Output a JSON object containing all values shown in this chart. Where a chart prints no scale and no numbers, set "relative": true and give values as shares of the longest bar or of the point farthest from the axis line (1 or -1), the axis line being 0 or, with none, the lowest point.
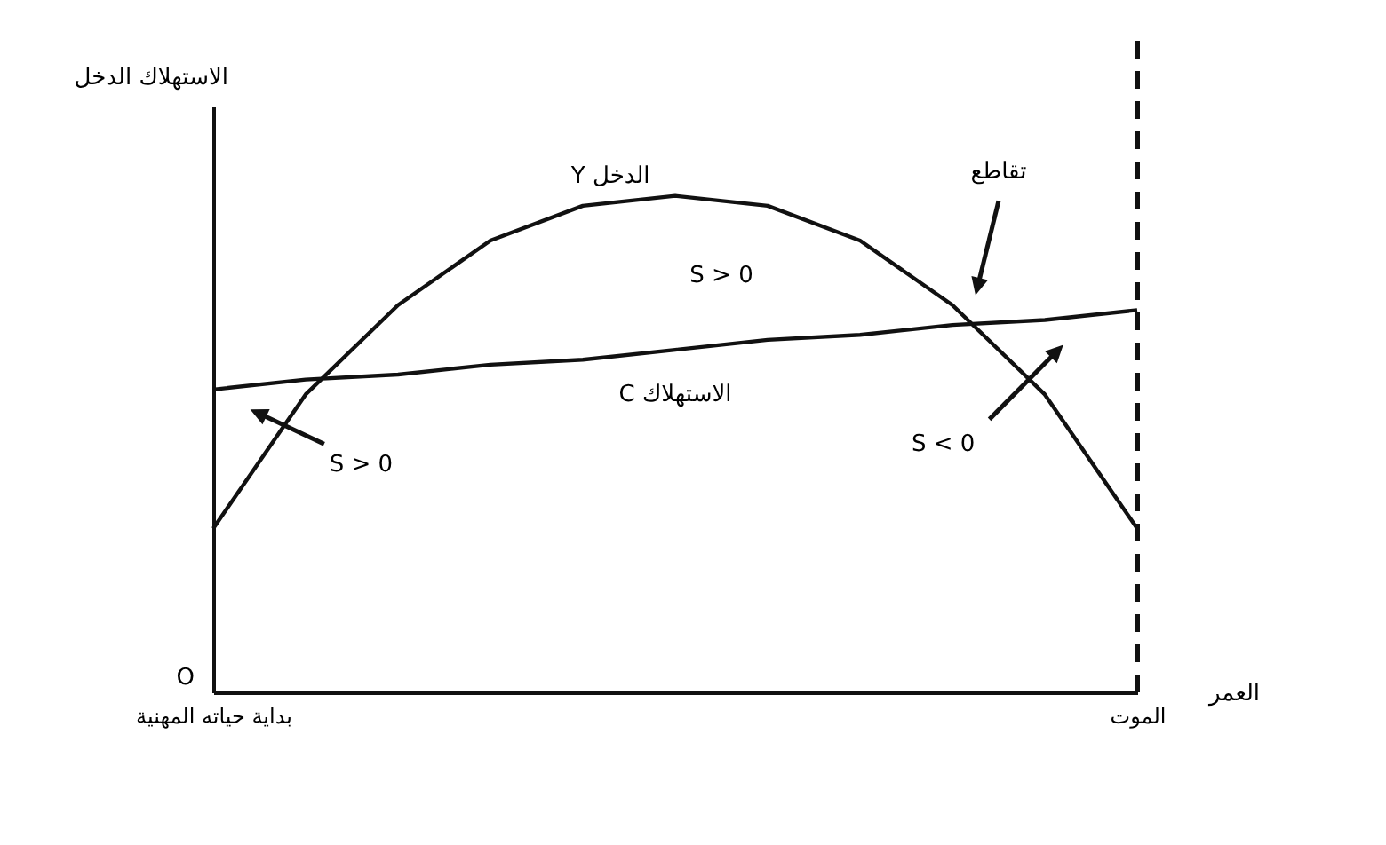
{
  "chart_data": {
    "type": "line",
    "relative": true,
    "xlabel": "العمر",
    "ylabel": "الاستهلاك الدخل",
    "categories": [
      "بداية حياته المهنية",
      null,
      null,
      null,
      null,
      null,
      null,
      null,
      null,
      null,
      "الموت"
    ],
    "series": [
      {
        "name": "Y الدخل",
        "color": "#111111",
        "values": [
          0.33,
          0.6,
          0.78,
          0.91,
          0.98,
          1,
          0.98,
          0.91,
          0.78,
          0.6,
          0.33
        ]
      },
      {
        "name": "C الاستهلاك",
        "color": "#111111",
        "values": [
          0.61,
          0.63,
          0.64,
          0.66,
          0.67,
          0.69,
          0.71,
          0.72,
          0.74,
          0.75,
          0.77
        ]
      }
    ],
    "annotations": [
      "S > 0",
      "S > 0",
      "S < 0",
      "تقاطع",
      "O"
    ],
    "ref_lines": [
      {
        "axis": "x",
        "value": "الموت",
        "line_style": "dashed",
        "color": "#111111"
      }
    ],
    "grid": false,
    "marker": "none",
    "line_style": "solid"
  }
}
